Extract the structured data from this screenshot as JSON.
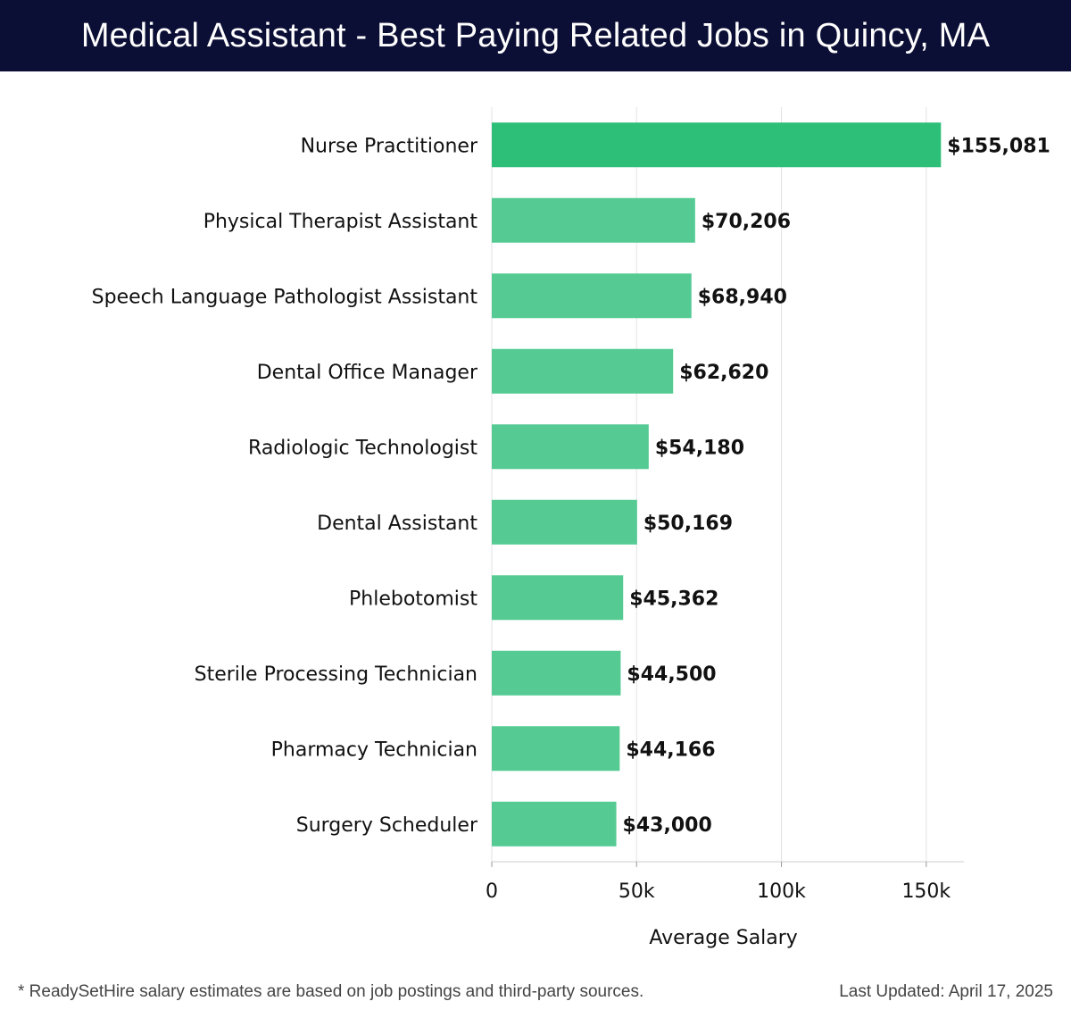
{
  "title": "Medical Assistant - Best Paying Related Jobs in Quincy, MA",
  "footer": {
    "note": "* ReadySetHire salary estimates are based on job postings and third-party sources.",
    "updated": "Last Updated: April 17, 2025"
  },
  "colors": {
    "header_bg": "#0c0f35",
    "top_bar": "#2dbe78",
    "bar": "#55cb93",
    "grid": "#e3e3e3"
  },
  "chart_data": {
    "type": "bar",
    "orientation": "horizontal",
    "categories": [
      "Nurse Practitioner",
      "Physical Therapist Assistant",
      "Speech Language Pathologist Assistant",
      "Dental Office Manager",
      "Radiologic Technologist",
      "Dental Assistant",
      "Phlebotomist",
      "Sterile Processing Technician",
      "Pharmacy Technician",
      "Surgery Scheduler"
    ],
    "values": [
      155081,
      70206,
      68940,
      62620,
      54180,
      50169,
      45362,
      44500,
      44166,
      43000
    ],
    "value_labels": [
      "$155,081",
      "$70,206",
      "$68,940",
      "$62,620",
      "$54,180",
      "$50,169",
      "$45,362",
      "$44,500",
      "$44,166",
      "$43,000"
    ],
    "xlabel": "Average Salary",
    "ylabel": "",
    "xlim": [
      0,
      163000
    ],
    "x_ticks": [
      0,
      50000,
      100000,
      150000
    ],
    "x_tick_labels": [
      "0",
      "50k",
      "100k",
      "150k"
    ],
    "grid": "vertical",
    "legend": "none"
  }
}
